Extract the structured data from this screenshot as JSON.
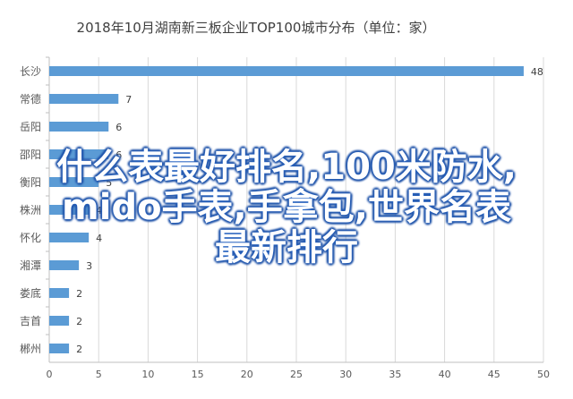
{
  "chart_data": {
    "type": "bar",
    "orientation": "horizontal",
    "title": "2018年10月湖南新三板企业TOP100城市分布（单位：家）",
    "categories": [
      "长沙",
      "常德",
      "岳阳",
      "邵阳",
      "衡阳",
      "株洲",
      "怀化",
      "湘潭",
      "娄底",
      "吉首",
      "郴州"
    ],
    "values": [
      48,
      7,
      6,
      6,
      5,
      4,
      4,
      3,
      2,
      2,
      2
    ],
    "xlim": [
      0,
      50
    ],
    "xticks": [
      0,
      5,
      10,
      15,
      20,
      25,
      30,
      35,
      40,
      45,
      50
    ],
    "grid": true,
    "bar_color": "#5b9bd5"
  },
  "overlay": {
    "lines": [
      "什么表最好排名,100米防水,",
      "mido手表,手拿包,世界名表",
      "最新排行"
    ]
  }
}
